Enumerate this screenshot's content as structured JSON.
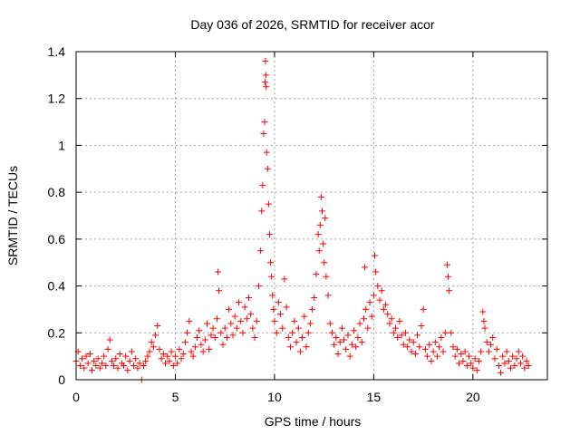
{
  "chart_data": {
    "type": "scatter",
    "title": "Day 036 of 2026, SRMTID for receiver acor",
    "xlabel": "GPS time / hours",
    "ylabel": "SRMTID / TECUs",
    "xlim": [
      0,
      23.75
    ],
    "ylim": [
      0,
      1.4
    ],
    "xticks": [
      0,
      5,
      10,
      15,
      20
    ],
    "xtick_labels": [
      "0",
      "5",
      "10",
      "15",
      "20"
    ],
    "yticks": [
      0,
      0.2,
      0.4,
      0.6,
      0.8,
      1.0,
      1.2,
      1.4
    ],
    "ytick_labels": [
      "0",
      "0.2",
      "0.4",
      "0.6",
      "0.8",
      "1",
      "1.2",
      "1.4"
    ],
    "grid": true,
    "marker": "+",
    "series": [
      {
        "name": "SRMTID",
        "color": "#ff0000",
        "points": [
          [
            0.0,
            0.08
          ],
          [
            0.1,
            0.12
          ],
          [
            0.2,
            0.06
          ],
          [
            0.3,
            0.09
          ],
          [
            0.4,
            0.05
          ],
          [
            0.5,
            0.1
          ],
          [
            0.6,
            0.07
          ],
          [
            0.7,
            0.11
          ],
          [
            0.8,
            0.04
          ],
          [
            0.9,
            0.08
          ],
          [
            1.0,
            0.06
          ],
          [
            1.1,
            0.09
          ],
          [
            1.2,
            0.05
          ],
          [
            1.3,
            0.07
          ],
          [
            1.4,
            0.1
          ],
          [
            1.5,
            0.06
          ],
          [
            1.6,
            0.13
          ],
          [
            1.7,
            0.17
          ],
          [
            1.8,
            0.08
          ],
          [
            1.9,
            0.06
          ],
          [
            2.0,
            0.09
          ],
          [
            2.1,
            0.05
          ],
          [
            2.2,
            0.11
          ],
          [
            2.3,
            0.07
          ],
          [
            2.4,
            0.06
          ],
          [
            2.5,
            0.1
          ],
          [
            2.6,
            0.04
          ],
          [
            2.7,
            0.08
          ],
          [
            2.8,
            0.12
          ],
          [
            2.9,
            0.06
          ],
          [
            3.0,
            0.09
          ],
          [
            3.1,
            0.05
          ],
          [
            3.2,
            0.07
          ],
          [
            3.3,
            0.0
          ],
          [
            3.4,
            0.06
          ],
          [
            3.5,
            0.08
          ],
          [
            3.6,
            0.1
          ],
          [
            3.7,
            0.12
          ],
          [
            3.8,
            0.16
          ],
          [
            3.9,
            0.14
          ],
          [
            4.0,
            0.19
          ],
          [
            4.1,
            0.23
          ],
          [
            4.2,
            0.13
          ],
          [
            4.3,
            0.09
          ],
          [
            4.4,
            0.11
          ],
          [
            4.5,
            0.07
          ],
          [
            4.6,
            0.1
          ],
          [
            4.7,
            0.08
          ],
          [
            4.8,
            0.12
          ],
          [
            4.9,
            0.06
          ],
          [
            5.0,
            0.1
          ],
          [
            5.1,
            0.07
          ],
          [
            5.2,
            0.13
          ],
          [
            5.3,
            0.09
          ],
          [
            5.4,
            0.11
          ],
          [
            5.5,
            0.16
          ],
          [
            5.6,
            0.2
          ],
          [
            5.7,
            0.25
          ],
          [
            5.8,
            0.12
          ],
          [
            5.9,
            0.1
          ],
          [
            6.0,
            0.14
          ],
          [
            6.1,
            0.18
          ],
          [
            6.2,
            0.21
          ],
          [
            6.3,
            0.15
          ],
          [
            6.4,
            0.12
          ],
          [
            6.5,
            0.17
          ],
          [
            6.6,
            0.24
          ],
          [
            6.7,
            0.13
          ],
          [
            6.8,
            0.19
          ],
          [
            6.9,
            0.22
          ],
          [
            7.0,
            0.18
          ],
          [
            7.1,
            0.26
          ],
          [
            7.15,
            0.46
          ],
          [
            7.2,
            0.38
          ],
          [
            7.3,
            0.2
          ],
          [
            7.4,
            0.15
          ],
          [
            7.5,
            0.22
          ],
          [
            7.6,
            0.18
          ],
          [
            7.7,
            0.3
          ],
          [
            7.8,
            0.24
          ],
          [
            7.9,
            0.19
          ],
          [
            8.0,
            0.27
          ],
          [
            8.1,
            0.22
          ],
          [
            8.2,
            0.33
          ],
          [
            8.3,
            0.25
          ],
          [
            8.4,
            0.2
          ],
          [
            8.5,
            0.31
          ],
          [
            8.6,
            0.26
          ],
          [
            8.7,
            0.35
          ],
          [
            8.8,
            0.28
          ],
          [
            8.9,
            0.22
          ],
          [
            9.0,
            0.18
          ],
          [
            9.1,
            0.25
          ],
          [
            9.2,
            0.4
          ],
          [
            9.3,
            0.55
          ],
          [
            9.35,
            0.72
          ],
          [
            9.4,
            0.83
          ],
          [
            9.45,
            1.05
          ],
          [
            9.5,
            1.1
          ],
          [
            9.52,
            1.27
          ],
          [
            9.54,
            1.36
          ],
          [
            9.56,
            1.3
          ],
          [
            9.58,
            1.25
          ],
          [
            9.6,
            0.97
          ],
          [
            9.65,
            0.9
          ],
          [
            9.7,
            0.75
          ],
          [
            9.75,
            0.62
          ],
          [
            9.8,
            0.5
          ],
          [
            9.85,
            0.44
          ],
          [
            9.9,
            0.36
          ],
          [
            9.95,
            0.3
          ],
          [
            10.0,
            0.25
          ],
          [
            10.1,
            0.2
          ],
          [
            10.2,
            0.33
          ],
          [
            10.3,
            0.28
          ],
          [
            10.4,
            0.22
          ],
          [
            10.5,
            0.43
          ],
          [
            10.6,
            0.31
          ],
          [
            10.7,
            0.18
          ],
          [
            10.8,
            0.14
          ],
          [
            10.9,
            0.2
          ],
          [
            11.0,
            0.25
          ],
          [
            11.1,
            0.16
          ],
          [
            11.2,
            0.22
          ],
          [
            11.3,
            0.12
          ],
          [
            11.4,
            0.18
          ],
          [
            11.5,
            0.27
          ],
          [
            11.6,
            0.14
          ],
          [
            11.7,
            0.2
          ],
          [
            11.8,
            0.24
          ],
          [
            11.9,
            0.3
          ],
          [
            12.0,
            0.35
          ],
          [
            12.1,
            0.45
          ],
          [
            12.2,
            0.62
          ],
          [
            12.25,
            0.55
          ],
          [
            12.3,
            0.66
          ],
          [
            12.35,
            0.78
          ],
          [
            12.4,
            0.72
          ],
          [
            12.45,
            0.58
          ],
          [
            12.5,
            0.5
          ],
          [
            12.55,
            0.69
          ],
          [
            12.6,
            0.44
          ],
          [
            12.7,
            0.36
          ],
          [
            12.8,
            0.24
          ],
          [
            12.9,
            0.2
          ],
          [
            13.0,
            0.15
          ],
          [
            13.1,
            0.18
          ],
          [
            13.2,
            0.11
          ],
          [
            13.3,
            0.16
          ],
          [
            13.4,
            0.22
          ],
          [
            13.5,
            0.17
          ],
          [
            13.6,
            0.13
          ],
          [
            13.7,
            0.19
          ],
          [
            13.8,
            0.1
          ],
          [
            13.9,
            0.15
          ],
          [
            14.0,
            0.21
          ],
          [
            14.1,
            0.14
          ],
          [
            14.2,
            0.18
          ],
          [
            14.3,
            0.24
          ],
          [
            14.4,
            0.16
          ],
          [
            14.5,
            0.26
          ],
          [
            14.55,
            0.48
          ],
          [
            14.6,
            0.3
          ],
          [
            14.7,
            0.22
          ],
          [
            14.8,
            0.33
          ],
          [
            14.9,
            0.27
          ],
          [
            15.0,
            0.36
          ],
          [
            15.05,
            0.53
          ],
          [
            15.1,
            0.46
          ],
          [
            15.2,
            0.4
          ],
          [
            15.3,
            0.34
          ],
          [
            15.4,
            0.38
          ],
          [
            15.5,
            0.3
          ],
          [
            15.6,
            0.32
          ],
          [
            15.7,
            0.28
          ],
          [
            15.8,
            0.24
          ],
          [
            15.9,
            0.26
          ],
          [
            16.0,
            0.2
          ],
          [
            16.1,
            0.22
          ],
          [
            16.2,
            0.18
          ],
          [
            16.3,
            0.25
          ],
          [
            16.4,
            0.19
          ],
          [
            16.5,
            0.15
          ],
          [
            16.6,
            0.2
          ],
          [
            16.7,
            0.14
          ],
          [
            16.8,
            0.17
          ],
          [
            16.9,
            0.12
          ],
          [
            17.0,
            0.16
          ],
          [
            17.1,
            0.11
          ],
          [
            17.2,
            0.19
          ],
          [
            17.3,
            0.14
          ],
          [
            17.4,
            0.23
          ],
          [
            17.5,
            0.3
          ],
          [
            17.6,
            0.13
          ],
          [
            17.7,
            0.1
          ],
          [
            17.8,
            0.15
          ],
          [
            17.9,
            0.08
          ],
          [
            18.0,
            0.12
          ],
          [
            18.1,
            0.16
          ],
          [
            18.2,
            0.1
          ],
          [
            18.3,
            0.14
          ],
          [
            18.4,
            0.18
          ],
          [
            18.5,
            0.12
          ],
          [
            18.6,
            0.2
          ],
          [
            18.7,
            0.49
          ],
          [
            18.75,
            0.44
          ],
          [
            18.8,
            0.38
          ],
          [
            18.9,
            0.2
          ],
          [
            19.0,
            0.14
          ],
          [
            19.1,
            0.1
          ],
          [
            19.2,
            0.13
          ],
          [
            19.3,
            0.07
          ],
          [
            19.4,
            0.11
          ],
          [
            19.5,
            0.08
          ],
          [
            19.6,
            0.12
          ],
          [
            19.7,
            0.06
          ],
          [
            19.8,
            0.1
          ],
          [
            19.9,
            0.07
          ],
          [
            20.0,
            0.05
          ],
          [
            20.1,
            0.09
          ],
          [
            20.2,
            0.04
          ],
          [
            20.3,
            0.08
          ],
          [
            20.4,
            0.12
          ],
          [
            20.5,
            0.29
          ],
          [
            20.55,
            0.25
          ],
          [
            20.6,
            0.22
          ],
          [
            20.7,
            0.16
          ],
          [
            20.8,
            0.12
          ],
          [
            20.9,
            0.15
          ],
          [
            21.0,
            0.18
          ],
          [
            21.1,
            0.09
          ],
          [
            21.2,
            0.13
          ],
          [
            21.3,
            0.06
          ],
          [
            21.4,
            0.03
          ],
          [
            21.5,
            0.1
          ],
          [
            21.6,
            0.07
          ],
          [
            21.7,
            0.12
          ],
          [
            21.8,
            0.08
          ],
          [
            21.9,
            0.05
          ],
          [
            22.0,
            0.1
          ],
          [
            22.1,
            0.06
          ],
          [
            22.2,
            0.09
          ],
          [
            22.3,
            0.12
          ],
          [
            22.4,
            0.07
          ],
          [
            22.5,
            0.1
          ],
          [
            22.6,
            0.05
          ],
          [
            22.7,
            0.08
          ],
          [
            22.8,
            0.06
          ]
        ]
      }
    ]
  }
}
